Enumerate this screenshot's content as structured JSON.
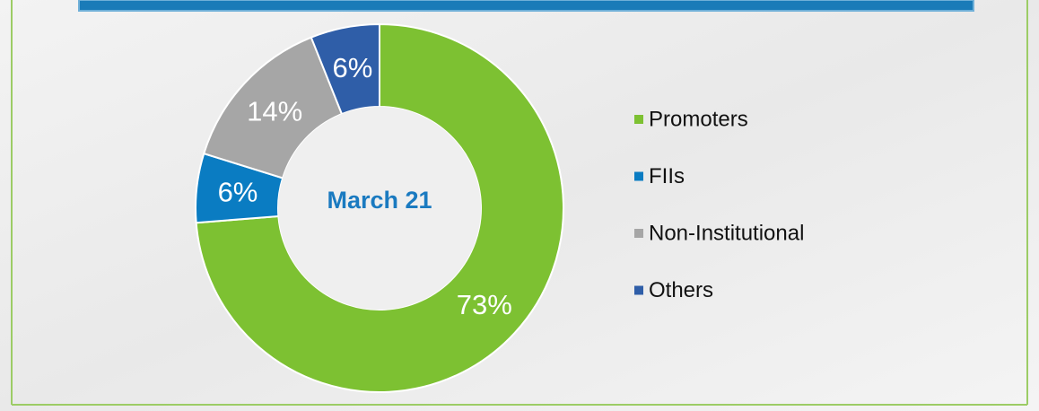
{
  "chart_data": {
    "type": "pie",
    "center_label": "March 21",
    "categories": [
      "Promoters",
      "FIIs",
      "Non-Institutional",
      "Others"
    ],
    "values": [
      73,
      6,
      14,
      6
    ],
    "value_labels": [
      "73%",
      "6%",
      "14%",
      "6%"
    ],
    "colors": [
      "#7dc132",
      "#0a7cc2",
      "#a6a6a6",
      "#2f5ea8"
    ],
    "legend": "right"
  }
}
